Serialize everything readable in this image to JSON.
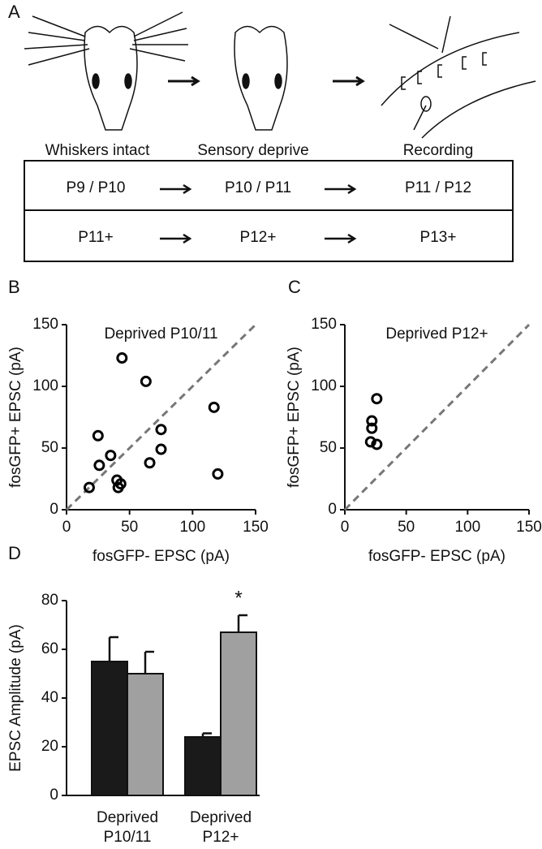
{
  "panel_a": {
    "label": "A",
    "stages": [
      "Whiskers intact",
      "Sensory deprive",
      "Recording"
    ],
    "table": {
      "rows": [
        [
          "P9 / P10",
          "P10 / P11",
          "P11 / P12"
        ],
        [
          "P11+",
          "P12+",
          "P13+"
        ]
      ]
    }
  },
  "chart_data": [
    {
      "type": "scatter",
      "panel": "B",
      "title": "Deprived P10/11",
      "x_label": "fosGFP- EPSC (pA)",
      "y_label": "fosGFP+ EPSC (pA)",
      "x": [
        44,
        63,
        25,
        26,
        35,
        18,
        40,
        43,
        41,
        75,
        75,
        66,
        117,
        120
      ],
      "values": [
        123,
        104,
        60,
        36,
        44,
        18,
        24,
        21,
        18,
        65,
        49,
        38,
        83,
        29
      ],
      "color": "#000000",
      "xlim": [
        0,
        150
      ],
      "xticks": [
        0,
        50,
        100,
        150
      ],
      "ylim": [
        0,
        150
      ],
      "yticks": [
        0,
        50,
        100,
        150
      ]
    },
    {
      "type": "scatter",
      "panel": "C",
      "title": "Deprived P12+",
      "x_label": "fosGFP- EPSC (pA)",
      "y_label": "fosGFP+ EPSC (pA)",
      "x": [
        26,
        22,
        22,
        21,
        26
      ],
      "values": [
        90,
        72,
        66,
        55,
        53
      ],
      "color": "#000000",
      "xlim": [
        0,
        150
      ],
      "xticks": [
        0,
        50,
        100,
        150
      ],
      "ylim": [
        0,
        150
      ],
      "yticks": [
        0,
        50,
        100,
        150
      ]
    },
    {
      "type": "bar",
      "panel": "D",
      "y_label": "EPSC Amplitude (pA)",
      "categories": [
        "Deprived P10/11",
        "Deprived P12+"
      ],
      "series": [
        {
          "color": "#1a1a1a",
          "values": [
            55,
            24
          ],
          "errors": [
            10,
            1.5
          ]
        },
        {
          "color": "#a0a0a0",
          "values": [
            50,
            67
          ],
          "errors": [
            9,
            7
          ]
        }
      ],
      "annotation": "*",
      "ylim": [
        0,
        80
      ],
      "yticks": [
        0,
        20,
        40,
        60,
        80
      ]
    }
  ]
}
